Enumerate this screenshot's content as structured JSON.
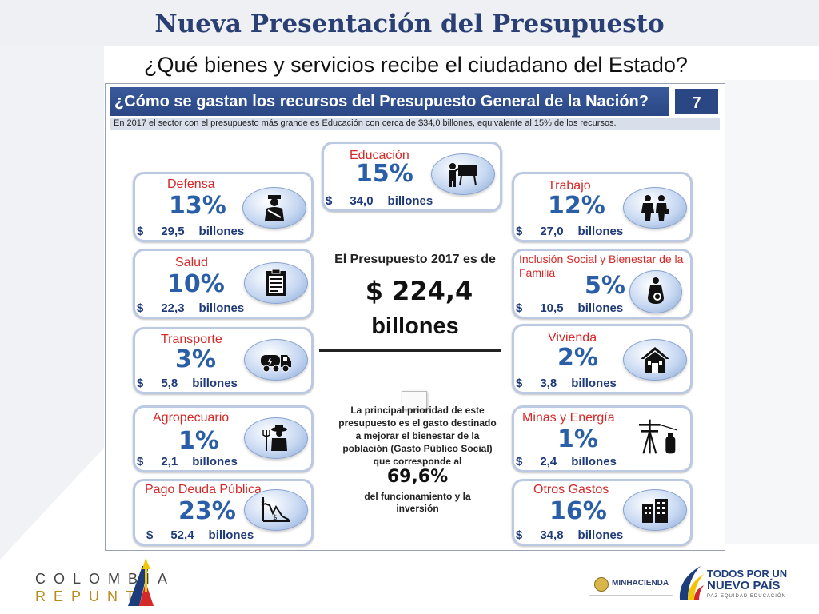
{
  "slide": {
    "title": "Nueva Presentación del Presupuesto",
    "subtitle": "¿Qué bienes y servicios recibe el ciudadano del Estado?"
  },
  "panel": {
    "heading": "¿Cómo se gastan los recursos del Presupuesto General de la Nación?",
    "number": "7",
    "note": "En 2017 el sector con el presupuesto más grande es Educación con cerca de $34,0 billones, equivalente al 15% de los recursos."
  },
  "currency_symbol": "$",
  "unit_label": "billones",
  "sectors": [
    {
      "name": "Educación",
      "percent": "15%",
      "amount": "34,0",
      "icon": "teacher-icon"
    },
    {
      "name": "Defensa",
      "percent": "13%",
      "amount": "29,5",
      "icon": "soldier-icon"
    },
    {
      "name": "Trabajo",
      "percent": "12%",
      "amount": "27,0",
      "icon": "workers-icon"
    },
    {
      "name": "Salud",
      "percent": "10%",
      "amount": "22,3",
      "icon": "clipboard-icon"
    },
    {
      "name": "Inclusión Social y Bienestar de la Familia",
      "percent": "5%",
      "amount": "10,5",
      "icon": "pregnant-woman-icon"
    },
    {
      "name": "Transporte",
      "percent": "3%",
      "amount": "5,8",
      "icon": "truck-icon"
    },
    {
      "name": "Vivienda",
      "percent": "2%",
      "amount": "3,8",
      "icon": "house-icon"
    },
    {
      "name": "Agropecuario",
      "percent": "1%",
      "amount": "2,1",
      "icon": "farmer-icon"
    },
    {
      "name": "Minas y Energía",
      "percent": "1%",
      "amount": "2,4",
      "icon": "power-tower-icon"
    },
    {
      "name": "Pago Deuda Pública",
      "percent": "23%",
      "amount": "52,4",
      "icon": "debt-chart-icon"
    },
    {
      "name": "Otros Gastos",
      "percent": "16%",
      "amount": "34,8",
      "icon": "buildings-icon"
    }
  ],
  "center": {
    "heading": "El Presupuesto 2017 es de",
    "total": "$ 224,4",
    "total_unit": "billones",
    "priority_text": "La principal prioridad de este presupuesto es el gasto destinado a mejorar el bienestar de la población (Gasto Público Social) que corresponde al",
    "social_share": "69,6%",
    "social_share_suffix": "del funcionamiento y la inversión"
  },
  "footer": {
    "logo_left_line1": "COLOMBIA",
    "logo_left_line2": "REPUNTA",
    "ministry": "MINHACIENDA",
    "gov_line1": "TODOS POR UN",
    "gov_line2": "NUEVO PAÍS",
    "gov_tagline": "PAZ EQUIDAD EDUCACIÓN"
  },
  "colors": {
    "title": "#2a3f73",
    "panel_header": "#2a4784",
    "sector_label": "#d52828",
    "percent": "#2a5fa8",
    "amount": "#1f3a78",
    "card_border": "#bcc9e2"
  }
}
